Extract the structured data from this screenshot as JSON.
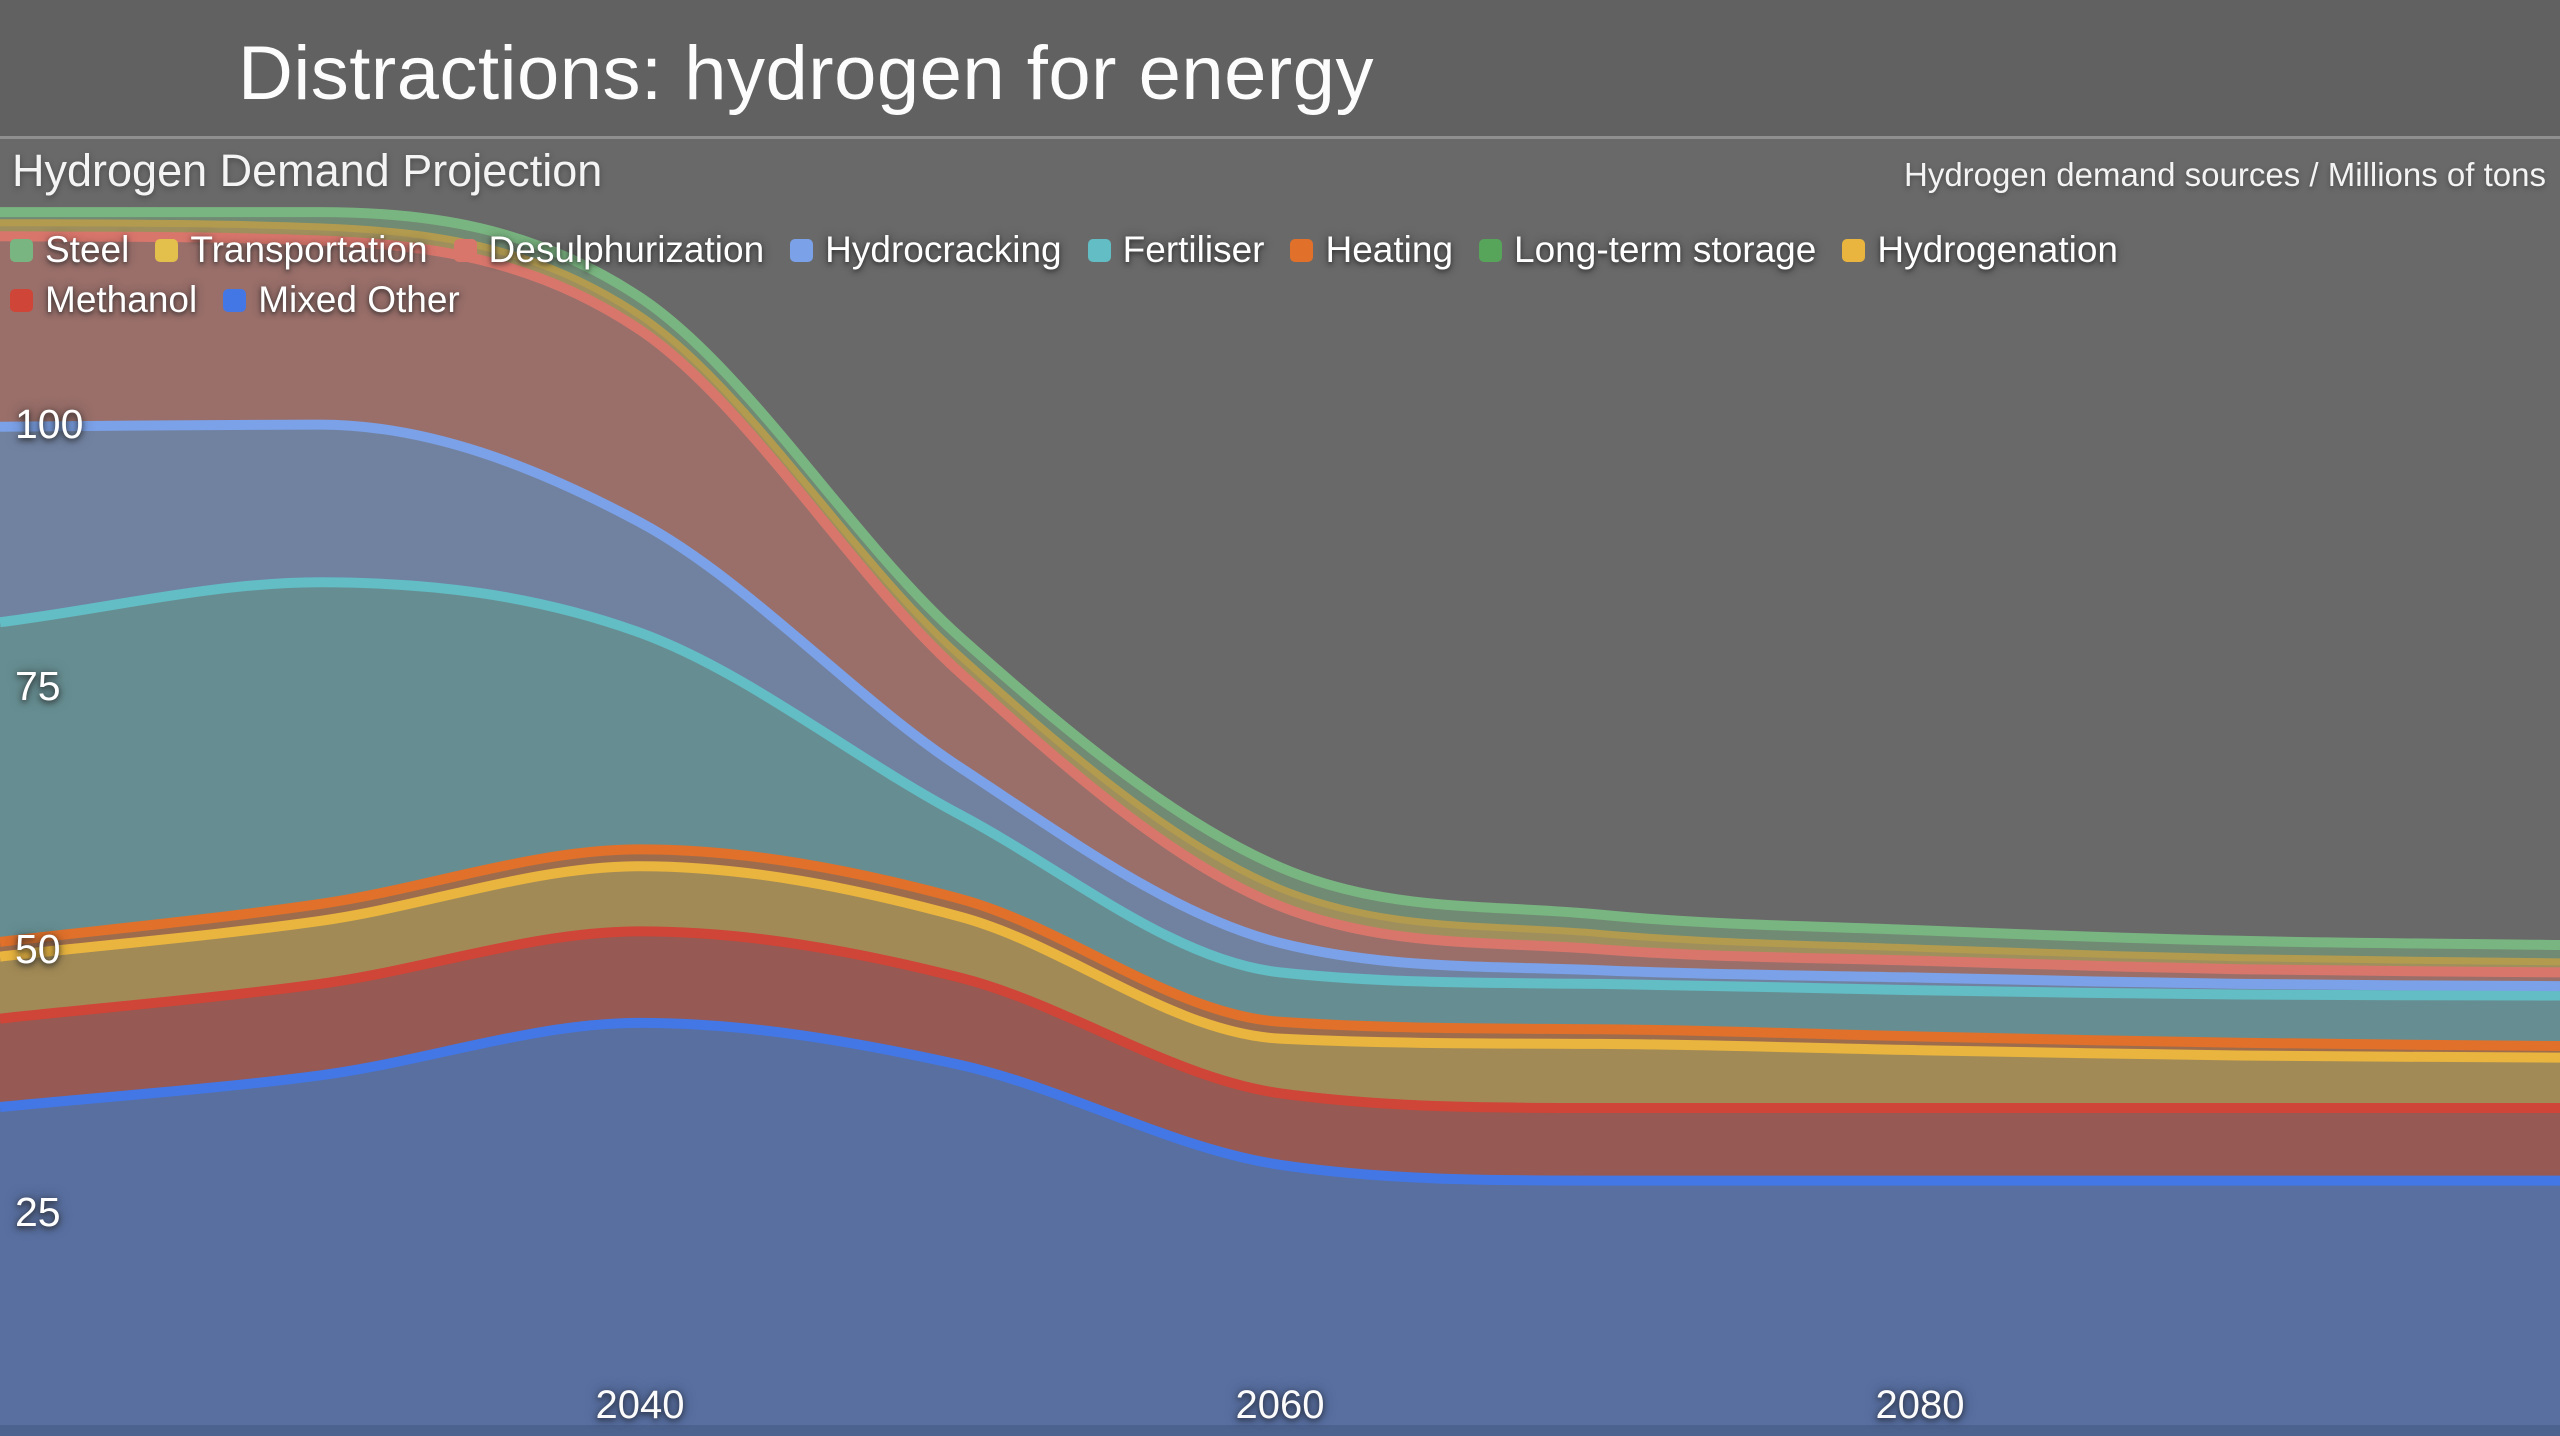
{
  "header": {
    "title": "Distractions: hydrogen for energy"
  },
  "chart": {
    "subtitle": "Hydrogen Demand Projection",
    "units_label": "Hydrogen demand sources / Millions of tons",
    "legend_rows": [
      [
        "Steel",
        "Transportation",
        "Desulphurization",
        "Hydrocracking",
        "Fertiliser",
        "Heating",
        "Long-term storage",
        "Hydrogenation"
      ],
      [
        "Methanol",
        "Mixed Other"
      ]
    ]
  },
  "colors": {
    "titlebar_bg": "#616161",
    "chart_bg": "#696969",
    "separator": "#9c9c9c",
    "text": "#ffffff"
  },
  "chart_data": {
    "type": "area",
    "stacked": true,
    "smoothed": true,
    "title": "Hydrogen Demand Projection",
    "units": "Millions of tons",
    "grid": false,
    "legend_position": "top-left",
    "x_label": "",
    "y_label": "",
    "x": [
      2020,
      2030,
      2040,
      2050,
      2060,
      2070,
      2080,
      2090,
      2100
    ],
    "x_range": [
      2020,
      2100
    ],
    "ylim": [
      0,
      127
    ],
    "y_ticks": [
      25,
      50,
      75,
      100
    ],
    "x_ticks": [
      2040,
      2060,
      2080
    ],
    "fill_opacity": 0.44,
    "series_bottom_to_top": [
      {
        "name": "Mixed Other",
        "color": "#4377e6",
        "values": [
          35.0,
          38.0,
          43.0,
          39.0,
          29.5,
          28.0,
          28.0,
          28.0,
          28.0
        ]
      },
      {
        "name": "Methanol",
        "color": "#cf4537",
        "values": [
          8.4,
          8.7,
          8.7,
          8.3,
          6.8,
          6.9,
          6.9,
          6.9,
          6.9
        ]
      },
      {
        "name": "Hydrogenation",
        "color": "#eab53e",
        "values": [
          5.9,
          6.0,
          6.2,
          5.8,
          5.2,
          6.1,
          5.5,
          5.0,
          4.8
        ]
      },
      {
        "name": "Long-term storage",
        "color": "#57a45b",
        "line_width": 0,
        "values": [
          0.3,
          0.4,
          0.4,
          0.4,
          0.4,
          0.4,
          0.4,
          0.4,
          0.4
        ]
      },
      {
        "name": "Heating",
        "color": "#e0702a",
        "values": [
          1.1,
          1.2,
          1.2,
          1.3,
          1.2,
          1.0,
          0.9,
          0.8,
          0.7
        ]
      },
      {
        "name": "Fertiliser",
        "color": "#62bdc5",
        "values": [
          30.4,
          30.6,
          20.6,
          8.0,
          4.7,
          4.3,
          4.4,
          4.6,
          4.8
        ]
      },
      {
        "name": "Hydrocracking",
        "color": "#7ba1e8",
        "values": [
          18.6,
          15.0,
          10.5,
          4.5,
          2.8,
          1.3,
          1.2,
          1.0,
          0.9
        ]
      },
      {
        "name": "Desulphurization",
        "color": "#d9766c",
        "values": [
          18.1,
          17.5,
          18.3,
          9.0,
          3.5,
          2.0,
          1.6,
          1.4,
          1.3
        ]
      },
      {
        "name": "Transportation",
        "color": "#e3bf4b",
        "line_color": "#b29b4f",
        "line_width": 7,
        "values": [
          1.3,
          1.3,
          1.4,
          1.6,
          1.7,
          1.5,
          1.2,
          1.1,
          1.0
        ]
      },
      {
        "name": "Steel",
        "color": "#79b580",
        "values": [
          1.0,
          1.4,
          1.7,
          1.8,
          2.0,
          1.8,
          1.7,
          1.6,
          1.6
        ]
      }
    ]
  }
}
